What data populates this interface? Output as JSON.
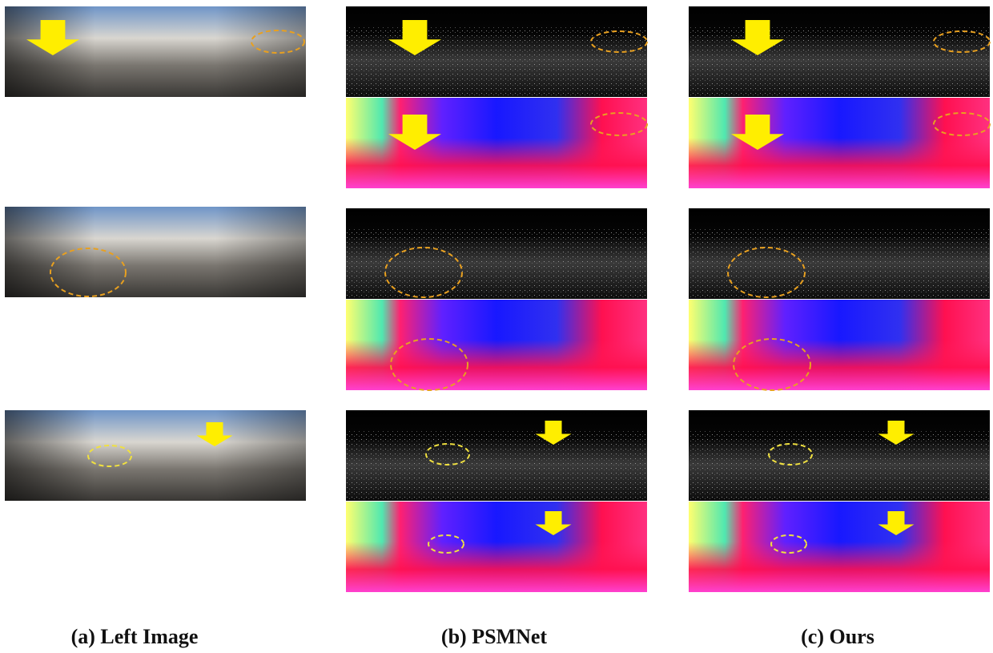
{
  "captions": [
    "(a) Left Image",
    "(b) PSMNet",
    "(c) Ours"
  ]
}
